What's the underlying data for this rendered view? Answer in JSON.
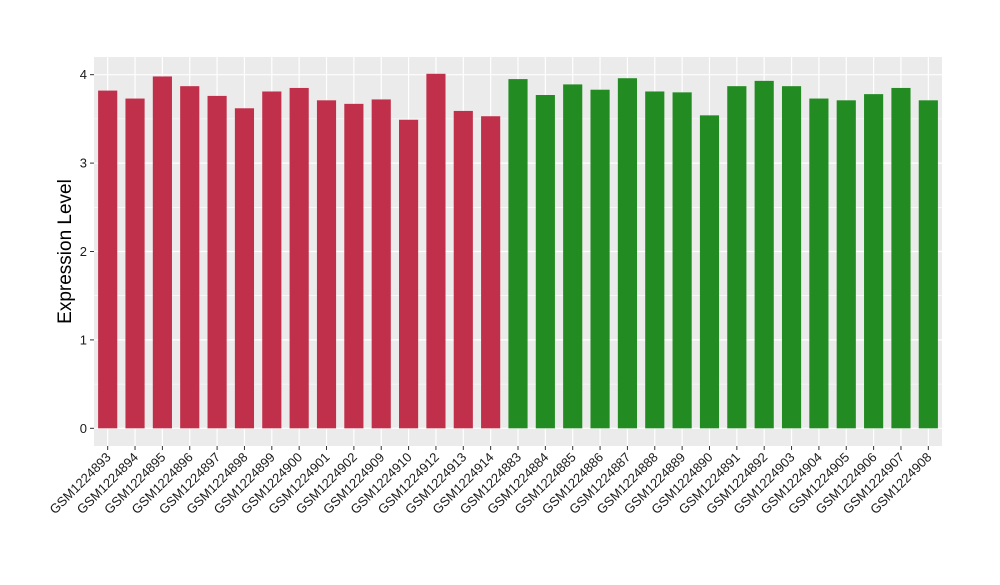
{
  "chart_data": {
    "type": "bar",
    "title": "",
    "xlabel": "",
    "ylabel": "Expression Level",
    "ylim": [
      -0.2,
      4.2
    ],
    "yticks": [
      0,
      1,
      2,
      3,
      4
    ],
    "grid": true,
    "legend": "none",
    "categories": [
      "GSM1224893",
      "GSM1224894",
      "GSM1224895",
      "GSM1224896",
      "GSM1224897",
      "GSM1224898",
      "GSM1224899",
      "GSM1224900",
      "GSM1224901",
      "GSM1224902",
      "GSM1224909",
      "GSM1224910",
      "GSM1224912",
      "GSM1224913",
      "GSM1224914",
      "GSM1224883",
      "GSM1224884",
      "GSM1224885",
      "GSM1224886",
      "GSM1224887",
      "GSM1224888",
      "GSM1224889",
      "GSM1224890",
      "GSM1224891",
      "GSM1224892",
      "GSM1224903",
      "GSM1224904",
      "GSM1224905",
      "GSM1224906",
      "GSM1224907",
      "GSM1224908"
    ],
    "values": [
      3.82,
      3.73,
      3.98,
      3.87,
      3.76,
      3.62,
      3.81,
      3.85,
      3.71,
      3.67,
      3.72,
      3.49,
      4.01,
      3.59,
      3.53,
      3.95,
      3.77,
      3.89,
      3.83,
      3.96,
      3.81,
      3.8,
      3.54,
      3.87,
      3.93,
      3.87,
      3.73,
      3.71,
      3.78,
      3.85,
      3.71
    ],
    "groups": [
      "red",
      "red",
      "red",
      "red",
      "red",
      "red",
      "red",
      "red",
      "red",
      "red",
      "red",
      "red",
      "red",
      "red",
      "red",
      "green",
      "green",
      "green",
      "green",
      "green",
      "green",
      "green",
      "green",
      "green",
      "green",
      "green",
      "green",
      "green",
      "green",
      "green",
      "green"
    ],
    "colors": {
      "red": "#C0304A",
      "green": "#228B22"
    },
    "panel_background": "#EBEBEB",
    "grid_color": "#FFFFFF"
  }
}
